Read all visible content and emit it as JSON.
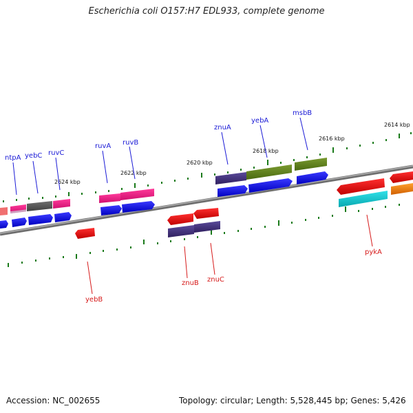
{
  "title": "Escherichia coli O157:H7 EDL933, complete genome",
  "footer": {
    "accession": "Accession: NC_002655",
    "stats": "Topology: circular; Length: 5,528,445 bp; Genes: 5,426"
  },
  "kbp_labels": [
    "2624 kbp",
    "2622 kbp",
    "2620 kbp",
    "2618 kbp",
    "2616 kbp",
    "2614 kbp"
  ],
  "forward_gene_labels": [
    "ntpA",
    "yebC",
    "ruvC",
    "ruvA",
    "ruvB",
    "znuA",
    "yebA",
    "msbB"
  ],
  "reverse_gene_labels": [
    "yebB",
    "znuB",
    "znuC",
    "pykA"
  ],
  "colors": {
    "forward_label": "#1a1ad6",
    "reverse_label": "#d61a1a",
    "cds_blue": "#0000e6",
    "cds_red": "#e60000",
    "backbone": "#8a8a8a",
    "tick_green": "#1a7a1a",
    "magenta": "#e0187a",
    "olive": "#6a8a20",
    "slate": "#4a3a8a",
    "gray": "#555555",
    "cyan": "#10c8d0",
    "orange": "#f08010",
    "salmon": "#f07070"
  }
}
